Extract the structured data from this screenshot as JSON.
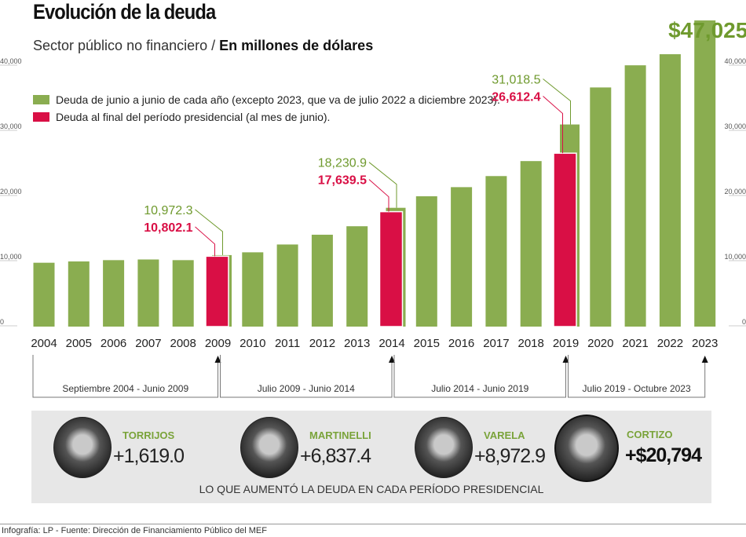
{
  "header": {
    "title": "Evolución de la deuda",
    "subtitle_plain": "Sector público no financiero / ",
    "subtitle_bold": "En millones de dólares"
  },
  "colors": {
    "green": "#8aad50",
    "red": "#d90f45",
    "annotation_green": "#6f9a2e"
  },
  "chart_data": {
    "type": "bar",
    "title": "Evolución de la deuda",
    "categories": [
      "2004",
      "2005",
      "2006",
      "2007",
      "2008",
      "2009",
      "2010",
      "2011",
      "2012",
      "2013",
      "2014",
      "2015",
      "2016",
      "2017",
      "2018",
      "2019",
      "2020",
      "2021",
      "2022",
      "2023"
    ],
    "series": [
      {
        "name": "Deuda de junio a junio de cada año (excepto 2023, que va de julio 2022 a diciembre 2023).",
        "color": "#8aad50",
        "values": [
          9800,
          10000,
          10200,
          10300,
          10200,
          10972.3,
          11400,
          12600,
          14100,
          15400,
          18230.9,
          20000,
          21400,
          23100,
          25400,
          31018.5,
          36700,
          40100,
          41800,
          47025
        ]
      },
      {
        "name": "Deuda al final del período presidencial (al mes de junio).",
        "color": "#d90f45",
        "values": [
          null,
          null,
          null,
          null,
          null,
          10802.1,
          null,
          null,
          null,
          null,
          17639.5,
          null,
          null,
          null,
          null,
          26612.4,
          null,
          null,
          null,
          null
        ]
      }
    ],
    "ylim": [
      0,
      50000
    ],
    "yticks": [
      "0",
      "10,000",
      "20,000",
      "30,000",
      "40,000"
    ],
    "ytick_values": [
      0,
      10000,
      20000,
      30000,
      40000
    ],
    "annotations": [
      {
        "year": "2009",
        "green_label": "10,972.3",
        "red_label": "10,802.1"
      },
      {
        "year": "2014",
        "green_label": "18,230.9",
        "red_label": "17,639.5"
      },
      {
        "year": "2019",
        "green_label": "31,018.5",
        "red_label": "26,612.4"
      },
      {
        "year": "2023",
        "green_label": "$47,025"
      }
    ],
    "periods": [
      {
        "label": "Septiembre 2004 - Junio 2009",
        "from": "2004",
        "to": "2009"
      },
      {
        "label": "Julio 2009 - Junio 2014",
        "from": "2009",
        "to": "2014"
      },
      {
        "label": "Julio 2014 - Junio 2019",
        "from": "2014",
        "to": "2019"
      },
      {
        "label": "Julio 2019 - Octubre 2023",
        "from": "2019",
        "to": "2023"
      }
    ],
    "grid": false,
    "legend": "top-left"
  },
  "presidents": [
    {
      "name": "TORRIJOS",
      "value": "+1,619.0"
    },
    {
      "name": "MARTINELLI",
      "value": "+6,837.4"
    },
    {
      "name": "VARELA",
      "value": "+8,972.9"
    },
    {
      "name": "CORTIZO",
      "value": "+$20,794"
    }
  ],
  "panel_caption": "LO QUE AUMENTÓ LA DEUDA EN CADA PERÍODO PRESIDENCIAL",
  "footer": "Infografía: LP - Fuente: Dirección de Financiamiento Público del MEF"
}
